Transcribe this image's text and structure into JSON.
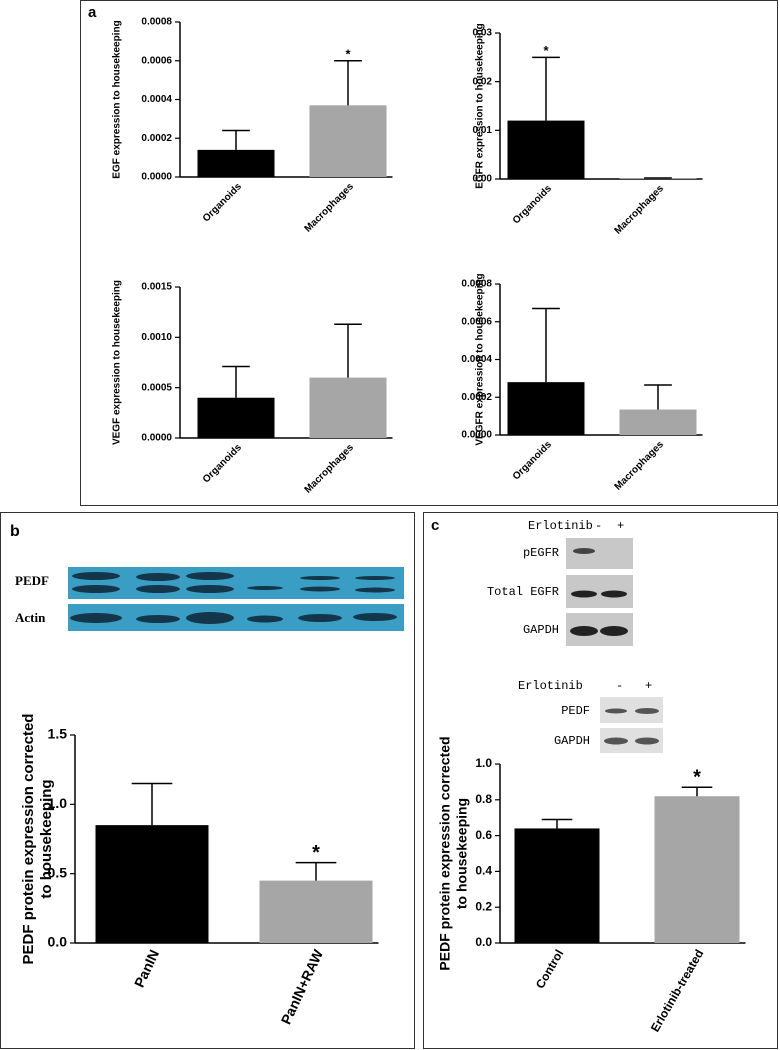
{
  "panel_labels": [
    "a",
    "b",
    "c"
  ],
  "blots": {
    "b": {
      "rows": [
        "PEDF",
        "Actin"
      ]
    },
    "c_top": {
      "header": "Erlotinib",
      "lanes": [
        "-",
        "+"
      ],
      "rows": [
        "pEGFR",
        "Total EGFR",
        "GAPDH"
      ]
    },
    "c_bottom": {
      "header": "Erlotinib",
      "lanes": [
        "-",
        "+"
      ],
      "rows": [
        "PEDF",
        "GAPDH"
      ]
    }
  },
  "chart_data": [
    {
      "type": "bar",
      "y_label": "EGF expression to housekeeping",
      "categories": [
        "Organoids",
        "Macrophages"
      ],
      "values": [
        0.00014,
        0.00037
      ],
      "errors": [
        0.0001,
        0.00023
      ],
      "significance": [
        null,
        "*"
      ],
      "colors": [
        "#000000",
        "#a6a6a6"
      ],
      "ylim": [
        0,
        0.0008
      ],
      "yticks": [
        {
          "value": 0,
          "label": "0.0000"
        },
        0.0002,
        0.0004,
        0.0006,
        0.0008
      ]
    },
    {
      "type": "bar",
      "y_label": "EGFR expression to housekeeping",
      "categories": [
        "Organoids",
        "Macrophages"
      ],
      "values": [
        0.012,
        0.0002
      ],
      "errors": [
        0.013,
        0
      ],
      "significance": [
        "*",
        null
      ],
      "colors": [
        "#000000",
        "#a6a6a6"
      ],
      "ylim": [
        0,
        0.03
      ],
      "yticks": [
        {
          "value": 0,
          "label": "0.00"
        },
        0.01,
        0.02,
        0.03
      ]
    },
    {
      "type": "bar",
      "y_label": "VEGF expression to housekeeping",
      "categories": [
        "Organoids",
        "Macrophages"
      ],
      "values": [
        0.0004,
        0.0006
      ],
      "errors": [
        0.00031,
        0.00053
      ],
      "significance": [
        null,
        null
      ],
      "colors": [
        "#000000",
        "#a6a6a6"
      ],
      "ylim": [
        0,
        0.0015
      ],
      "yticks": [
        {
          "value": 0,
          "label": "0.0000"
        },
        0.0005,
        {
          "value": 0.001,
          "label": "0.0010"
        },
        0.0015
      ]
    },
    {
      "type": "bar",
      "y_label": "VEGFR expression to housekeeping",
      "categories": [
        "Organoids",
        "Macrophages"
      ],
      "values": [
        0.00028,
        0.000135
      ],
      "errors": [
        0.00039,
        0.00013
      ],
      "significance": [
        null,
        null
      ],
      "colors": [
        "#000000",
        "#a6a6a6"
      ],
      "ylim": [
        0,
        0.0008
      ],
      "yticks": [
        {
          "value": 0,
          "label": "0.0000"
        },
        0.0002,
        0.0004,
        0.0006,
        0.0008
      ]
    },
    {
      "type": "bar",
      "y_label": [
        "PEDF protein expression corrected",
        "to housekeeping"
      ],
      "categories": [
        "PanIN",
        "PanIN+RAW"
      ],
      "values": [
        0.85,
        0.45
      ],
      "errors": [
        0.3,
        0.13
      ],
      "significance": [
        null,
        "*"
      ],
      "colors": [
        "#000000",
        "#a6a6a6"
      ],
      "ylim": [
        0,
        1.5
      ],
      "yticks": [
        {
          "value": 0,
          "label": "0.0"
        },
        0.5,
        {
          "value": 1,
          "label": "1.0"
        },
        1.5
      ]
    },
    {
      "type": "bar",
      "y_label": [
        "PEDF protein expression corrected",
        "to housekeeping"
      ],
      "categories": [
        "Control",
        "Erlotinib-treated"
      ],
      "values": [
        0.64,
        0.82
      ],
      "errors": [
        0.05,
        0.05
      ],
      "significance": [
        null,
        "*"
      ],
      "colors": [
        "#000000",
        "#a6a6a6"
      ],
      "ylim": [
        0,
        1
      ],
      "yticks": [
        {
          "value": 0,
          "label": "0.0"
        },
        0.2,
        0.4,
        0.6,
        0.8,
        {
          "value": 1,
          "label": "1.0"
        }
      ]
    }
  ]
}
